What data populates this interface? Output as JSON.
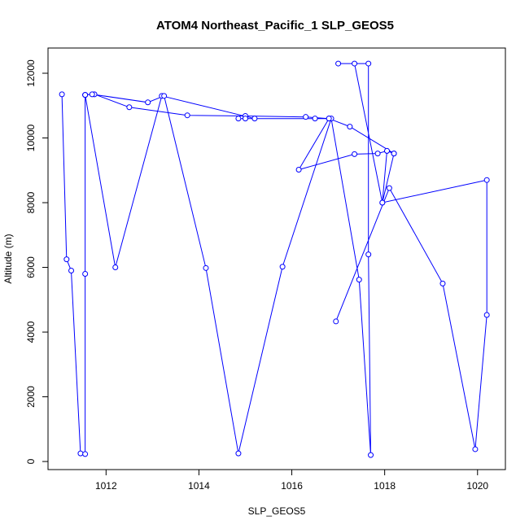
{
  "chart_data": {
    "type": "line",
    "title": "ATOM4 Northeast_Pacific_1 SLP_GEOS5",
    "xlabel": "SLP_GEOS5",
    "ylabel": "Altitude (m)",
    "xlim": [
      1010.75,
      1020.6
    ],
    "ylim": [
      -250,
      12780
    ],
    "xticks": [
      1012,
      1014,
      1016,
      1018,
      1020
    ],
    "yticks": [
      0,
      2000,
      4000,
      6000,
      8000,
      10000,
      12000
    ],
    "grid": false,
    "legend": "none",
    "series": [
      {
        "color": "#0000ff",
        "marker": "open-circle",
        "x": [
          1011.05,
          1011.15,
          1011.25,
          1011.45,
          1011.55,
          1011.55,
          1011.55,
          1011.75,
          1012.5,
          1013.75,
          1015.0,
          1016.3,
          1016.8,
          1016.5,
          1014.85,
          1015.0,
          1015.2,
          1013.2,
          1012.2,
          1011.55,
          1011.55,
          1011.7,
          1012.9,
          1013.25,
          1014.15,
          1014.85,
          1015.8,
          1016.85,
          1017.45,
          1017.7,
          1017.65,
          1017.65,
          1017.0,
          1017.35,
          1017.95,
          1018.05,
          1018.2,
          1017.25,
          1016.8,
          1016.15,
          1017.35,
          1017.85,
          1018.05,
          1018.2,
          1017.95,
          1020.2,
          1020.2,
          1019.95,
          1019.25,
          1018.1,
          1016.95
        ],
        "y": [
          11350,
          6250,
          5900,
          250,
          230,
          5800,
          11330,
          11350,
          10950,
          10700,
          10680,
          10650,
          10600,
          10600,
          10600,
          10600,
          10600,
          11300,
          6000,
          11330,
          11330,
          11350,
          11100,
          11300,
          5980,
          250,
          6020,
          10600,
          5620,
          200,
          6400,
          12300,
          12300,
          12300,
          8000,
          9600,
          9520,
          10350,
          10600,
          9020,
          9500,
          9520,
          9600,
          9520,
          8000,
          8700,
          4530,
          380,
          5500,
          8450,
          4330
        ]
      }
    ]
  }
}
